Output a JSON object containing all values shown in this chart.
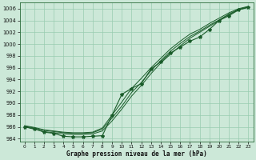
{
  "xlabel": "Graphe pression niveau de la mer (hPa)",
  "background_color": "#cce8d8",
  "grid_color": "#99ccb0",
  "line_color": "#1a5c2a",
  "xlim": [
    -0.5,
    23.5
  ],
  "ylim": [
    983.5,
    1007.0
  ],
  "yticks": [
    984,
    986,
    988,
    990,
    992,
    994,
    996,
    998,
    1000,
    1002,
    1004,
    1006
  ],
  "xticks": [
    0,
    1,
    2,
    3,
    4,
    5,
    6,
    7,
    8,
    9,
    10,
    11,
    12,
    13,
    14,
    15,
    16,
    17,
    18,
    19,
    20,
    21,
    22,
    23
  ],
  "series_measured": [
    986.0,
    985.7,
    985.1,
    984.9,
    984.4,
    984.3,
    984.3,
    984.4,
    984.5,
    988.0,
    991.5,
    992.5,
    993.3,
    995.8,
    997.0,
    998.5,
    999.5,
    1000.5,
    1001.2,
    1002.5,
    1004.0,
    1004.8,
    1005.8,
    1006.3
  ],
  "series_line1": [
    986.0,
    985.6,
    985.2,
    985.0,
    984.8,
    984.7,
    984.7,
    984.8,
    985.3,
    987.0,
    989.0,
    991.2,
    993.0,
    995.0,
    996.8,
    998.3,
    999.7,
    1001.0,
    1002.0,
    1003.0,
    1004.0,
    1005.0,
    1005.8,
    1006.2
  ],
  "series_line2": [
    986.1,
    985.8,
    985.4,
    985.2,
    985.0,
    984.9,
    984.9,
    985.0,
    985.6,
    987.5,
    989.5,
    991.8,
    993.5,
    995.5,
    997.2,
    998.8,
    1000.1,
    1001.3,
    1002.2,
    1003.2,
    1004.1,
    1005.1,
    1005.9,
    1006.3
  ],
  "series_line3": [
    986.2,
    985.9,
    985.5,
    985.3,
    985.1,
    985.0,
    985.0,
    985.1,
    985.8,
    988.0,
    990.2,
    992.5,
    994.2,
    996.0,
    997.6,
    999.2,
    1000.5,
    1001.7,
    1002.5,
    1003.5,
    1004.4,
    1005.3,
    1006.0,
    1006.4
  ]
}
